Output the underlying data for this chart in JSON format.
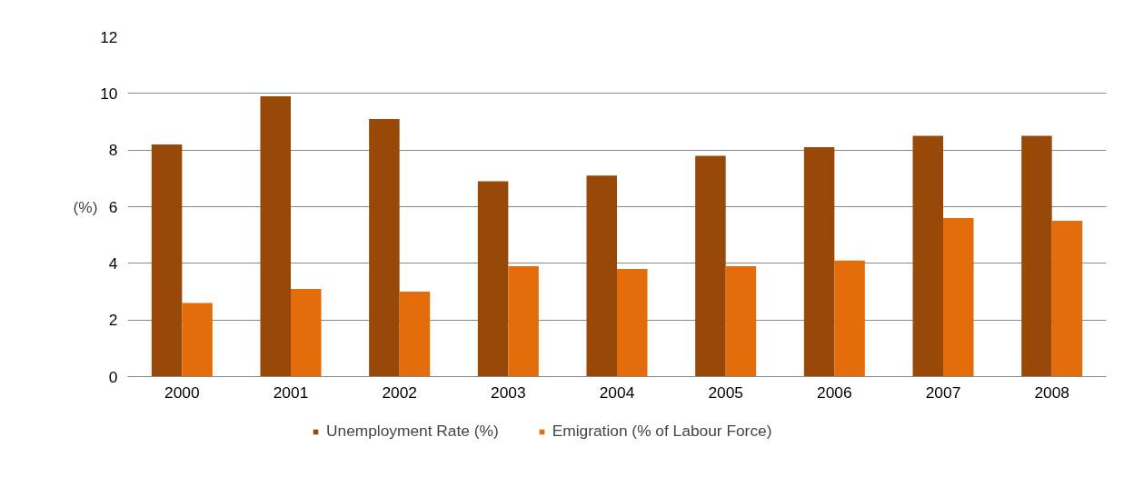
{
  "chart_data": {
    "type": "bar",
    "ylabel": "(%)",
    "categories": [
      "2000",
      "2001",
      "2002",
      "2003",
      "2004",
      "2005",
      "2006",
      "2007",
      "2008"
    ],
    "series": [
      {
        "name": "Unemployment Rate (%)",
        "color": "#984807",
        "values": [
          8.2,
          9.9,
          9.1,
          6.9,
          7.1,
          7.8,
          8.1,
          8.5,
          8.5
        ]
      },
      {
        "name": "Emigration (% of Labour Force)",
        "color": "#e46c0a",
        "values": [
          2.6,
          3.1,
          3.0,
          3.9,
          3.8,
          3.9,
          4.1,
          5.6,
          5.5
        ]
      }
    ],
    "ylim": [
      0,
      12
    ],
    "yticks": [
      0,
      2,
      4,
      6,
      8,
      10,
      12
    ],
    "grid": "y",
    "legend": "bottom"
  }
}
